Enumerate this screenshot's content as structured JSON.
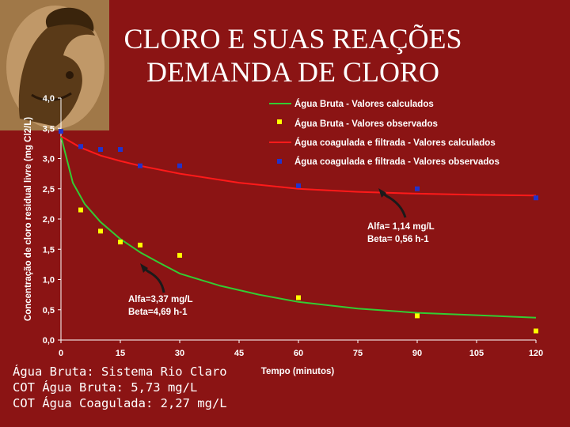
{
  "slide": {
    "title_line1": "CLORO E SUAS REAÇÕES",
    "title_line2": "DEMANDA DE CLORO",
    "logo_icon": "warrior-helmet-icon",
    "notes": [
      "Água Bruta: Sistema Rio Claro",
      "COT Água Bruta: 5,73 mg/L",
      "COT Água Coagulada: 2,27 mg/L"
    ]
  },
  "colors": {
    "background": "#8b1414",
    "green_series": "#33cc33",
    "yellow_series": "#ffff00",
    "red_series": "#ff1a1a",
    "blue_series": "#2233cc",
    "text": "#ffffff"
  },
  "chart_data": {
    "type": "line",
    "xlabel": "Tempo (minutos)",
    "ylabel": "Concentração de cloro residual livre (mg Cl2/L)",
    "xlim": [
      0,
      120
    ],
    "ylim": [
      0,
      4
    ],
    "x_ticks": [
      "0",
      "15",
      "30",
      "45",
      "60",
      "75",
      "90",
      "105",
      "120"
    ],
    "y_ticks": [
      "0,0",
      "0,5",
      "1,0",
      "1,5",
      "2,0",
      "2,5",
      "3,0",
      "3,5",
      "4,0"
    ],
    "grid": false,
    "legend_position": "top-right",
    "series": [
      {
        "name": "Água Bruta - Valores calculados",
        "kind": "line",
        "color": "#33cc33",
        "x": [
          0,
          3,
          6,
          10,
          15,
          20,
          25,
          30,
          40,
          50,
          60,
          75,
          90,
          105,
          120
        ],
        "y": [
          3.37,
          2.6,
          2.25,
          1.95,
          1.67,
          1.45,
          1.27,
          1.1,
          0.9,
          0.75,
          0.63,
          0.52,
          0.45,
          0.41,
          0.37
        ]
      },
      {
        "name": "Água Bruta - Valores observados",
        "kind": "scatter",
        "color": "#ffff00",
        "x": [
          5,
          10,
          15,
          20,
          30,
          60,
          90,
          120
        ],
        "y": [
          2.15,
          1.8,
          1.62,
          1.57,
          1.4,
          0.7,
          0.4,
          0.15
        ]
      },
      {
        "name": "Água coagulada e filtrada - Valores calculados",
        "kind": "line",
        "color": "#ff1a1a",
        "x": [
          0,
          5,
          10,
          15,
          20,
          30,
          45,
          60,
          75,
          90,
          105,
          120
        ],
        "y": [
          3.37,
          3.18,
          3.05,
          2.96,
          2.88,
          2.75,
          2.6,
          2.5,
          2.45,
          2.42,
          2.4,
          2.39
        ]
      },
      {
        "name": "Água coagulada e filtrada - Valores observados",
        "kind": "scatter",
        "color": "#2233cc",
        "x": [
          0,
          5,
          10,
          15,
          20,
          30,
          60,
          90,
          120
        ],
        "y": [
          3.45,
          3.2,
          3.15,
          3.15,
          2.88,
          2.88,
          2.55,
          2.5,
          2.35
        ]
      }
    ],
    "annotations": [
      {
        "line1": "Alfa= 1,14 mg/L",
        "line2": "Beta= 0,56 h-1"
      },
      {
        "line1": "Alfa=3,37 mg/L",
        "line2": "Beta=4,69 h-1"
      }
    ]
  }
}
